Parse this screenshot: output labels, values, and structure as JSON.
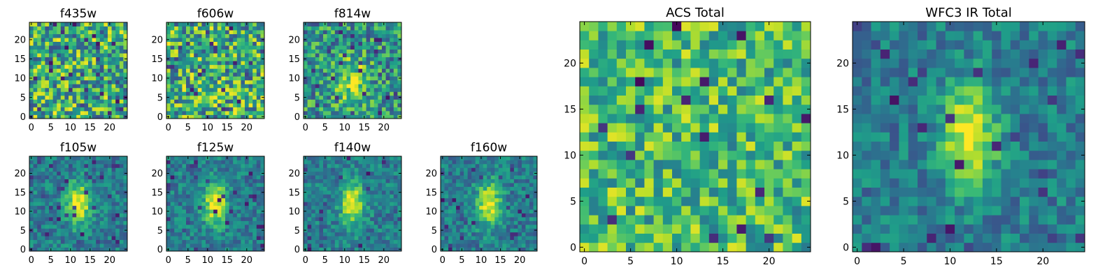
{
  "figure": {
    "colormap": "viridis",
    "background": "#ffffff",
    "axis_color": "#000000"
  },
  "chart_data": [
    {
      "type": "heatmap",
      "title": "f435w",
      "grid_size": 25,
      "pattern": "noise",
      "seed": 11,
      "xticks": [
        "0",
        "5",
        "10",
        "15",
        "20"
      ],
      "yticks": [
        "0",
        "5",
        "10",
        "15",
        "20"
      ],
      "xlim": [
        0,
        24
      ],
      "ylim": [
        0,
        24
      ],
      "color_range": [
        0,
        1
      ]
    },
    {
      "type": "heatmap",
      "title": "f606w",
      "grid_size": 25,
      "pattern": "noise",
      "seed": 23,
      "xticks": [
        "0",
        "5",
        "10",
        "15",
        "20"
      ],
      "yticks": [
        "0",
        "5",
        "10",
        "15",
        "20"
      ],
      "xlim": [
        0,
        24
      ],
      "ylim": [
        0,
        24
      ],
      "color_range": [
        0,
        1
      ]
    },
    {
      "type": "heatmap",
      "title": "f814w",
      "grid_size": 25,
      "pattern": "weak-source",
      "seed": 37,
      "xticks": [
        "0",
        "5",
        "10",
        "15",
        "20"
      ],
      "yticks": [
        "0",
        "5",
        "10",
        "15",
        "20"
      ],
      "xlim": [
        0,
        24
      ],
      "ylim": [
        0,
        24
      ],
      "color_range": [
        0,
        1
      ]
    },
    {
      "type": "heatmap",
      "title": "f105w",
      "grid_size": 25,
      "pattern": "source",
      "seed": 41,
      "xticks": [
        "0",
        "5",
        "10",
        "15",
        "20"
      ],
      "yticks": [
        "0",
        "5",
        "10",
        "15",
        "20"
      ],
      "xlim": [
        0,
        24
      ],
      "ylim": [
        0,
        24
      ],
      "color_range": [
        0,
        1
      ]
    },
    {
      "type": "heatmap",
      "title": "f125w",
      "grid_size": 25,
      "pattern": "source",
      "seed": 53,
      "xticks": [
        "0",
        "5",
        "10",
        "15",
        "20"
      ],
      "yticks": [
        "0",
        "5",
        "10",
        "15",
        "20"
      ],
      "xlim": [
        0,
        24
      ],
      "ylim": [
        0,
        24
      ],
      "color_range": [
        0,
        1
      ]
    },
    {
      "type": "heatmap",
      "title": "f140w",
      "grid_size": 25,
      "pattern": "source",
      "seed": 67,
      "xticks": [
        "0",
        "5",
        "10",
        "15",
        "20"
      ],
      "yticks": [
        "0",
        "5",
        "10",
        "15",
        "20"
      ],
      "xlim": [
        0,
        24
      ],
      "ylim": [
        0,
        24
      ],
      "color_range": [
        0,
        1
      ]
    },
    {
      "type": "heatmap",
      "title": "f160w",
      "grid_size": 25,
      "pattern": "source",
      "seed": 79,
      "xticks": [
        "0",
        "5",
        "10",
        "15",
        "20"
      ],
      "yticks": [
        "0",
        "5",
        "10",
        "15",
        "20"
      ],
      "xlim": [
        0,
        24
      ],
      "ylim": [
        0,
        24
      ],
      "color_range": [
        0,
        1
      ]
    },
    {
      "type": "heatmap",
      "title": "ACS Total",
      "grid_size": 25,
      "pattern": "noise-bright",
      "seed": 83,
      "xticks": [
        "0",
        "5",
        "10",
        "15",
        "20"
      ],
      "yticks": [
        "0",
        "5",
        "10",
        "15",
        "20"
      ],
      "xlim": [
        0,
        24
      ],
      "ylim": [
        0,
        24
      ],
      "color_range": [
        0,
        1
      ]
    },
    {
      "type": "heatmap",
      "title": "WFC3 IR Total",
      "grid_size": 25,
      "pattern": "source",
      "seed": 97,
      "xticks": [
        "0",
        "5",
        "10",
        "15",
        "20"
      ],
      "yticks": [
        "0",
        "5",
        "10",
        "15",
        "20"
      ],
      "xlim": [
        0,
        24
      ],
      "ylim": [
        0,
        24
      ],
      "color_range": [
        0,
        1
      ]
    }
  ]
}
